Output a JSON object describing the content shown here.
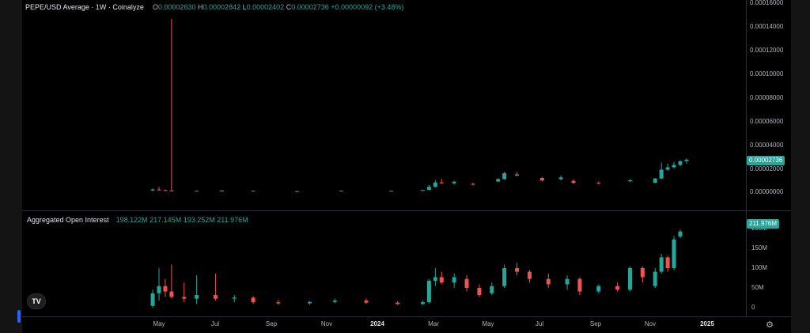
{
  "price_pane": {
    "symbol_line": "PEPE/USD Average · 1W · Coinalyze",
    "ohlc": [
      {
        "key": "O",
        "value": "0.00002630"
      },
      {
        "key": "H",
        "value": "0.00002842"
      },
      {
        "key": "L",
        "value": "0.00002402"
      },
      {
        "key": "C",
        "value": "0.00002736"
      }
    ],
    "change": "+0.00000092 (+3.48%)",
    "last_price_badge": "0.00002736",
    "axis_ticks": [
      "0.00016000",
      "0.00014000",
      "0.00012000",
      "0.00010000",
      "0.00008000",
      "0.00006000",
      "0.00004000",
      "0.00002000",
      "0.00000000"
    ]
  },
  "oi_pane": {
    "title": "Aggregated Open Interest",
    "values": [
      "198.122M",
      "217.145M",
      "193.252M",
      "211.976M"
    ],
    "last_badge": "211.976M",
    "axis_ticks": [
      "200M",
      "150M",
      "100M",
      "50M",
      "0"
    ]
  },
  "time_axis": {
    "labels": [
      "May",
      "Jul",
      "Sep",
      "Nov",
      "2024",
      "Mar",
      "May",
      "Jul",
      "Sep",
      "Nov",
      "2025"
    ]
  },
  "colors": {
    "up": "#26a69a",
    "down": "#ef5350",
    "background": "#000000"
  },
  "icons": {
    "logo": "tradingview-logo-icon",
    "settings": "gear-icon"
  },
  "logo_text": "TV",
  "chart_data": [
    {
      "type": "candlestick",
      "title": "PEPE/USD Average · 1W · Coinalyze",
      "ylim": [
        0,
        0.00016
      ],
      "spike": {
        "date": "2023-05-15",
        "high": 0.000146
      },
      "weeks": [
        {
          "date": "2023-04-24",
          "o": 1.5e-06,
          "h": 3.2e-06,
          "l": 1e-06,
          "c": 2.3e-06
        },
        {
          "date": "2023-05-01",
          "o": 2.3e-06,
          "h": 4.4e-06,
          "l": 1.4e-06,
          "c": 1.8e-06
        },
        {
          "date": "2023-05-08",
          "o": 1.8e-06,
          "h": 2.2e-06,
          "l": 1.2e-06,
          "c": 1.4e-06
        },
        {
          "date": "2023-05-15",
          "o": 1.4e-06,
          "h": 0.000146,
          "l": 1e-06,
          "c": 1.2e-06
        },
        {
          "date": "2023-06-12",
          "o": 1e-06,
          "h": 1.4e-06,
          "l": 8e-07,
          "c": 1.2e-06
        },
        {
          "date": "2023-07-10",
          "o": 1.4e-06,
          "h": 1.8e-06,
          "l": 1.1e-06,
          "c": 1.3e-06
        },
        {
          "date": "2023-08-14",
          "o": 1.2e-06,
          "h": 1.4e-06,
          "l": 8e-07,
          "c": 9e-07
        },
        {
          "date": "2023-10-02",
          "o": 8e-07,
          "h": 1e-06,
          "l": 7e-07,
          "c": 8e-07
        },
        {
          "date": "2023-11-20",
          "o": 1e-06,
          "h": 1.4e-06,
          "l": 9e-07,
          "c": 1.3e-06
        },
        {
          "date": "2024-01-15",
          "o": 1.2e-06,
          "h": 1.4e-06,
          "l": 1e-06,
          "c": 1.2e-06
        },
        {
          "date": "2024-02-19",
          "o": 1.3e-06,
          "h": 2e-06,
          "l": 1.2e-06,
          "c": 1.9e-06
        },
        {
          "date": "2024-02-26",
          "o": 1.9e-06,
          "h": 6e-06,
          "l": 1.8e-06,
          "c": 4.5e-06
        },
        {
          "date": "2024-03-04",
          "o": 4.5e-06,
          "h": 1e-05,
          "l": 4e-06,
          "c": 8.2e-06
        },
        {
          "date": "2024-03-11",
          "o": 8.2e-06,
          "h": 1.1e-05,
          "l": 7e-06,
          "c": 7.5e-06
        },
        {
          "date": "2024-03-25",
          "o": 7.5e-06,
          "h": 9.5e-06,
          "l": 6.5e-06,
          "c": 8.8e-06
        },
        {
          "date": "2024-04-15",
          "o": 7e-06,
          "h": 8e-06,
          "l": 5.5e-06,
          "c": 6.5e-06
        },
        {
          "date": "2024-05-13",
          "o": 9e-06,
          "h": 1.2e-05,
          "l": 8.5e-06,
          "c": 1.1e-05
        },
        {
          "date": "2024-05-20",
          "o": 1.1e-05,
          "h": 1.72e-05,
          "l": 1.05e-05,
          "c": 1.6e-05
        },
        {
          "date": "2024-06-03",
          "o": 1.5e-05,
          "h": 1.7e-05,
          "l": 1.35e-05,
          "c": 1.4e-05
        },
        {
          "date": "2024-07-01",
          "o": 1.2e-05,
          "h": 1.3e-05,
          "l": 9e-06,
          "c": 9.8e-06
        },
        {
          "date": "2024-07-22",
          "o": 1.1e-05,
          "h": 1.4e-05,
          "l": 1e-05,
          "c": 1.25e-05
        },
        {
          "date": "2024-08-05",
          "o": 9.5e-06,
          "h": 1.1e-05,
          "l": 7e-06,
          "c": 7.8e-06
        },
        {
          "date": "2024-09-02",
          "o": 7.8e-06,
          "h": 9e-06,
          "l": 6.8e-06,
          "c": 7.2e-06
        },
        {
          "date": "2024-10-07",
          "o": 9.5e-06,
          "h": 1.1e-05,
          "l": 8.5e-06,
          "c": 1e-05
        },
        {
          "date": "2024-11-04",
          "o": 8e-06,
          "h": 1.2e-05,
          "l": 7.5e-06,
          "c": 1.15e-05
        },
        {
          "date": "2024-11-11",
          "o": 1.15e-05,
          "h": 2.5e-05,
          "l": 1.1e-05,
          "c": 1.9e-05
        },
        {
          "date": "2024-11-18",
          "o": 1.9e-05,
          "h": 2.4e-05,
          "l": 1.8e-05,
          "c": 2.1e-05
        },
        {
          "date": "2024-11-25",
          "o": 2.1e-05,
          "h": 2.55e-05,
          "l": 2e-05,
          "c": 2.3e-05
        },
        {
          "date": "2024-12-02",
          "o": 2.3e-05,
          "h": 2.7e-05,
          "l": 2.2e-05,
          "c": 2.6e-05
        },
        {
          "date": "2024-12-09",
          "o": 2.63e-05,
          "h": 2.84e-05,
          "l": 2.4e-05,
          "c": 2.74e-05
        }
      ]
    },
    {
      "type": "candlestick",
      "title": "Aggregated Open Interest",
      "ylim": [
        0,
        220
      ],
      "unit": "M",
      "weeks": [
        {
          "date": "2023-04-24",
          "o": 5,
          "h": 50,
          "l": 0,
          "c": 40
        },
        {
          "date": "2023-05-01",
          "o": 40,
          "h": 110,
          "l": 20,
          "c": 60
        },
        {
          "date": "2023-05-08",
          "o": 60,
          "h": 80,
          "l": 30,
          "c": 45
        },
        {
          "date": "2023-05-15",
          "o": 45,
          "h": 120,
          "l": 25,
          "c": 30
        },
        {
          "date": "2023-05-29",
          "o": 30,
          "h": 70,
          "l": 15,
          "c": 25
        },
        {
          "date": "2023-06-12",
          "o": 25,
          "h": 90,
          "l": 10,
          "c": 35
        },
        {
          "date": "2023-07-03",
          "o": 35,
          "h": 95,
          "l": 20,
          "c": 25
        },
        {
          "date": "2023-07-24",
          "o": 25,
          "h": 35,
          "l": 15,
          "c": 28
        },
        {
          "date": "2023-08-14",
          "o": 28,
          "h": 32,
          "l": 10,
          "c": 15
        },
        {
          "date": "2023-09-11",
          "o": 15,
          "h": 22,
          "l": 8,
          "c": 12
        },
        {
          "date": "2023-10-16",
          "o": 12,
          "h": 18,
          "l": 8,
          "c": 16
        },
        {
          "date": "2023-11-13",
          "o": 16,
          "h": 25,
          "l": 12,
          "c": 20
        },
        {
          "date": "2023-12-18",
          "o": 20,
          "h": 25,
          "l": 10,
          "c": 14
        },
        {
          "date": "2024-01-22",
          "o": 14,
          "h": 18,
          "l": 8,
          "c": 10
        },
        {
          "date": "2024-02-19",
          "o": 10,
          "h": 20,
          "l": 8,
          "c": 15
        },
        {
          "date": "2024-02-26",
          "o": 15,
          "h": 80,
          "l": 12,
          "c": 75
        },
        {
          "date": "2024-03-04",
          "o": 75,
          "h": 110,
          "l": 60,
          "c": 85
        },
        {
          "date": "2024-03-11",
          "o": 85,
          "h": 100,
          "l": 65,
          "c": 70
        },
        {
          "date": "2024-03-25",
          "o": 70,
          "h": 95,
          "l": 55,
          "c": 85
        },
        {
          "date": "2024-04-08",
          "o": 80,
          "h": 90,
          "l": 45,
          "c": 55
        },
        {
          "date": "2024-04-22",
          "o": 55,
          "h": 65,
          "l": 30,
          "c": 35
        },
        {
          "date": "2024-05-06",
          "o": 40,
          "h": 70,
          "l": 35,
          "c": 60
        },
        {
          "date": "2024-05-20",
          "o": 60,
          "h": 120,
          "l": 55,
          "c": 110
        },
        {
          "date": "2024-06-03",
          "o": 110,
          "h": 125,
          "l": 90,
          "c": 100
        },
        {
          "date": "2024-06-17",
          "o": 100,
          "h": 105,
          "l": 70,
          "c": 80
        },
        {
          "date": "2024-07-08",
          "o": 80,
          "h": 95,
          "l": 55,
          "c": 65
        },
        {
          "date": "2024-07-29",
          "o": 65,
          "h": 90,
          "l": 50,
          "c": 80
        },
        {
          "date": "2024-08-12",
          "o": 80,
          "h": 85,
          "l": 35,
          "c": 45
        },
        {
          "date": "2024-09-02",
          "o": 45,
          "h": 65,
          "l": 40,
          "c": 60
        },
        {
          "date": "2024-09-23",
          "o": 60,
          "h": 70,
          "l": 45,
          "c": 50
        },
        {
          "date": "2024-10-07",
          "o": 50,
          "h": 115,
          "l": 45,
          "c": 110
        },
        {
          "date": "2024-10-21",
          "o": 110,
          "h": 115,
          "l": 70,
          "c": 85
        },
        {
          "date": "2024-11-04",
          "o": 60,
          "h": 110,
          "l": 55,
          "c": 100
        },
        {
          "date": "2024-11-11",
          "o": 100,
          "h": 150,
          "l": 95,
          "c": 140
        },
        {
          "date": "2024-11-18",
          "o": 140,
          "h": 145,
          "l": 100,
          "c": 110
        },
        {
          "date": "2024-11-25",
          "o": 110,
          "h": 200,
          "l": 105,
          "c": 190
        },
        {
          "date": "2024-12-02",
          "o": 198.122,
          "h": 217.145,
          "l": 193.252,
          "c": 211.976
        }
      ]
    }
  ]
}
